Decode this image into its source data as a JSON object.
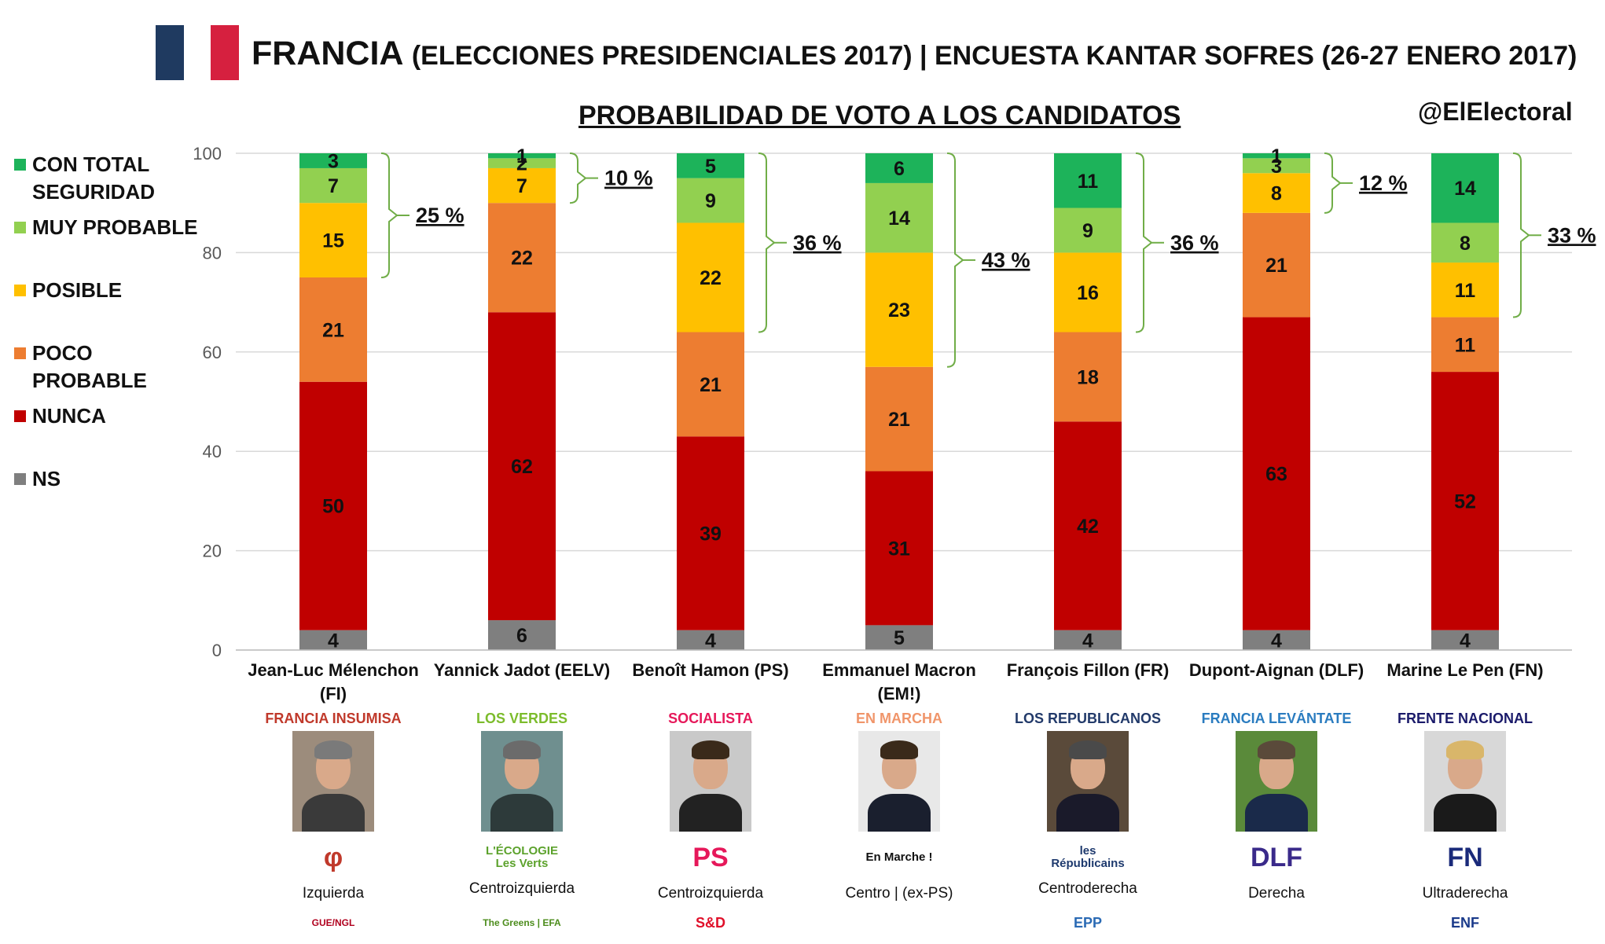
{
  "header": {
    "title_main": "FRANCIA",
    "title_sub": "(ELECCIONES PRESIDENCIALES 2017) | ENCUESTA KANTAR SOFRES (26-27 ENERO 2017)",
    "subtitle": "PROBABILIDAD DE VOTO A LOS CANDIDATOS",
    "handle": "@ElElectoral"
  },
  "colors": {
    "flag_blue": "#1f3a60",
    "flag_red": "#d6203f",
    "con_total_seguridad": "#1db35a",
    "muy_probable": "#92d050",
    "posible": "#ffc000",
    "poco_probable": "#ed7d31",
    "nunca": "#c00000",
    "ns": "#7f7f7f",
    "bracket": "#70ad47"
  },
  "legend": [
    {
      "label": "CON TOTAL SEGURIDAD",
      "color": "#1db35a"
    },
    {
      "label": "MUY PROBABLE",
      "color": "#92d050"
    },
    {
      "label": "POSIBLE",
      "color": "#ffc000"
    },
    {
      "label": "POCO PROBABLE",
      "color": "#ed7d31"
    },
    {
      "label": "NUNCA",
      "color": "#c00000"
    },
    {
      "label": "NS",
      "color": "#7f7f7f"
    }
  ],
  "chart_data": {
    "type": "bar",
    "stacked": true,
    "ylim": [
      0,
      100
    ],
    "yticks": [
      0,
      20,
      40,
      60,
      80,
      100
    ],
    "grid": true,
    "legend_position": "left",
    "categories": [
      "Jean-Luc Mélenchon (FI)",
      "Yannick Jadot (EELV)",
      "Benoît Hamon (PS)",
      "Emmanuel Macron (EM!)",
      "François Fillon (FR)",
      "Dupont-Aignan (DLF)",
      "Marine Le Pen (FN)"
    ],
    "series": [
      {
        "name": "NS",
        "color": "#7f7f7f",
        "values": [
          4,
          6,
          4,
          5,
          4,
          4,
          4
        ]
      },
      {
        "name": "NUNCA",
        "color": "#c00000",
        "values": [
          50,
          62,
          39,
          31,
          42,
          63,
          52
        ]
      },
      {
        "name": "POCO PROBABLE",
        "color": "#ed7d31",
        "values": [
          21,
          22,
          21,
          21,
          18,
          21,
          11
        ]
      },
      {
        "name": "POSIBLE",
        "color": "#ffc000",
        "values": [
          15,
          7,
          22,
          23,
          16,
          8,
          11
        ]
      },
      {
        "name": "MUY PROBABLE",
        "color": "#92d050",
        "values": [
          7,
          2,
          9,
          14,
          9,
          3,
          8
        ]
      },
      {
        "name": "CON TOTAL SEGURIDAD",
        "color": "#1db35a",
        "values": [
          3,
          1,
          5,
          6,
          11,
          1,
          14
        ]
      }
    ],
    "annotations": [
      "25 %",
      "10 %",
      "36 %",
      "43 %",
      "36 %",
      "12 %",
      "33 %"
    ]
  },
  "candidates": [
    {
      "name": "Jean-Luc Mélenchon (FI)",
      "party": "FRANCIA INSUMISA",
      "party_color": "#c0392b",
      "ideology": "Izquierda",
      "logo": "φ",
      "logo_color": "#c0392b",
      "group_logo": "GUE/NGL",
      "group_color": "#b0001e",
      "photo_bg": "#9c8c7c",
      "hair": "#7a7a7a",
      "body": "#3a3a3a"
    },
    {
      "name": "Yannick Jadot (EELV)",
      "party": "LOS VERDES",
      "party_color": "#7cbc2c",
      "ideology": "Centroizquierda",
      "logo": "L'ÉCOLOGIE Les Verts",
      "logo_color": "#5ca22c",
      "group_logo": "The Greens | EFA",
      "group_color": "#4c8c1c",
      "photo_bg": "#6f8f8f",
      "hair": "#6b6b6b",
      "body": "#2d3a3a"
    },
    {
      "name": "Benoît Hamon (PS)",
      "party": "SOCIALISTA",
      "party_color": "#e6185a",
      "ideology": "Centroizquierda",
      "logo": "PS",
      "logo_color": "#e6185a",
      "group_logo": "S&D",
      "group_color": "#e0102a",
      "photo_bg": "#c9c9c9",
      "hair": "#3a2a1a",
      "body": "#222222"
    },
    {
      "name": "Emmanuel Macron (EM!)",
      "party": "EN MARCHA",
      "party_color": "#f0956a",
      "ideology": "Centro | (ex-PS)",
      "logo": "En Marche !",
      "logo_color": "#111111",
      "group_logo": "",
      "group_color": "#111111",
      "photo_bg": "#e8e8e8",
      "hair": "#3a2a1a",
      "body": "#1a1f2e"
    },
    {
      "name": "François Fillon (FR)",
      "party": "LOS REPUBLICANOS",
      "party_color": "#223a6a",
      "ideology": "Centroderecha",
      "logo": "les Républicains",
      "logo_color": "#1e3a6e",
      "group_logo": "EPP",
      "group_color": "#2a6ab4",
      "photo_bg": "#5a4a3a",
      "hair": "#4a4a4a",
      "body": "#1a1a2a"
    },
    {
      "name": "Dupont-Aignan (DLF)",
      "party": "FRANCIA LEVÁNTATE",
      "party_color": "#2a7cc0",
      "ideology": "Derecha",
      "logo": "DLF",
      "logo_color": "#3a2a8a",
      "group_logo": "",
      "group_color": "#111111",
      "photo_bg": "#5a8a3a",
      "hair": "#5a4a3a",
      "body": "#1a2a4a"
    },
    {
      "name": "Marine Le Pen (FN)",
      "party": "FRENTE NACIONAL",
      "party_color": "#1a1a6a",
      "ideology": "Ultraderecha",
      "logo": "FN",
      "logo_color": "#1a2a7a",
      "group_logo": "ENF",
      "group_color": "#1a3a8a",
      "photo_bg": "#d8d8d8",
      "hair": "#d9b66a",
      "body": "#1a1a1a"
    }
  ]
}
